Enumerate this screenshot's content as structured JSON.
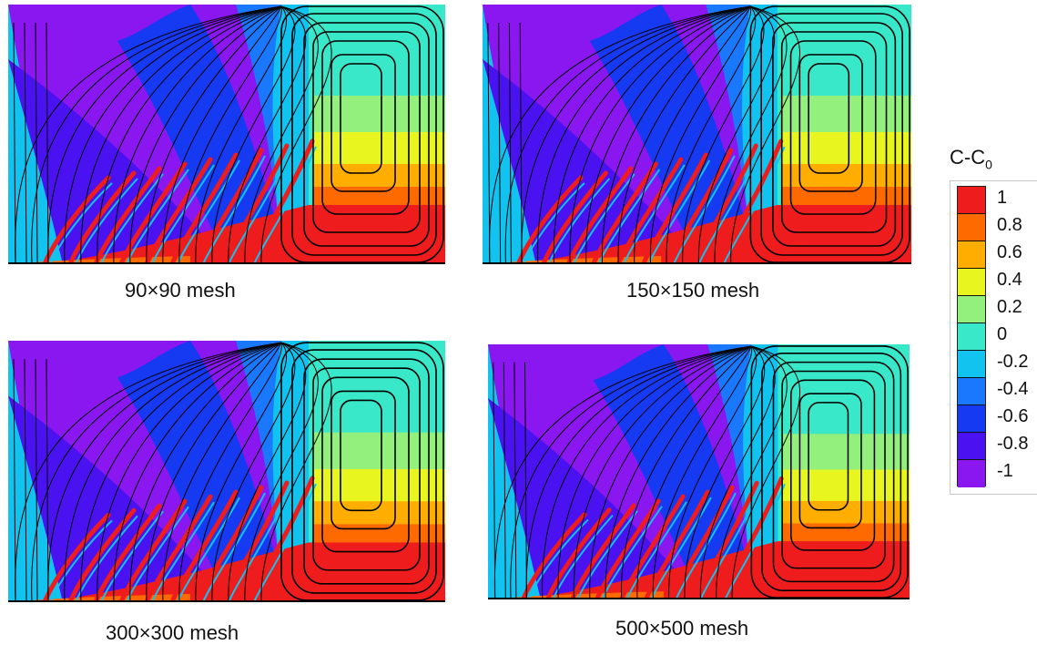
{
  "panels": [
    {
      "caption": "90×90 mesh"
    },
    {
      "caption": "150×150 mesh"
    },
    {
      "caption": "300×300 mesh"
    },
    {
      "caption": "500×500 mesh"
    }
  ],
  "legend": {
    "title": "C-C",
    "title_sub": "0",
    "levels": [
      "1",
      "0.8",
      "0.6",
      "0.4",
      "0.2",
      "0",
      "-0.2",
      "-0.4",
      "-0.6",
      "-0.8",
      "-1"
    ],
    "colors": [
      "#ee1c1c",
      "#ff6a00",
      "#ffae00",
      "#e9f51e",
      "#94f07c",
      "#38e8c8",
      "#12c3f0",
      "#1a78ff",
      "#1639f2",
      "#4a12f0",
      "#8a16f0"
    ]
  }
}
